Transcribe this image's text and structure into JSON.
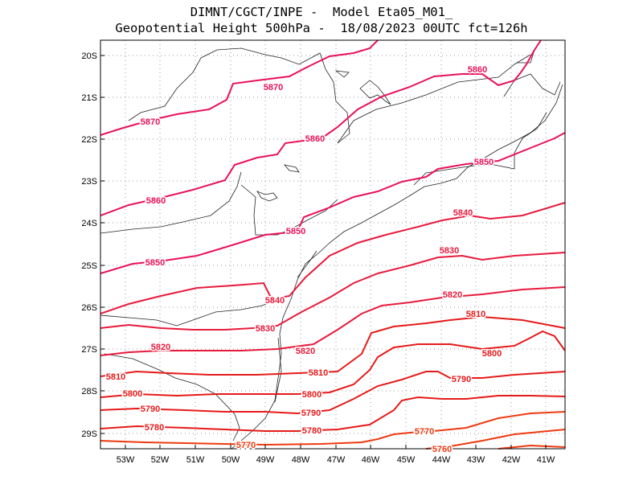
{
  "title": {
    "line1": "DIMNT/CGCT/INPE -  Model Eta05_M01_",
    "line2": "Geopotential Height 500hPa -  18/08/2023 00UTC fct=126h"
  },
  "axes": {
    "lat_labels": [
      "20S",
      "21S",
      "22S",
      "23S",
      "24S",
      "25S",
      "26S",
      "27S",
      "28S",
      "29S"
    ],
    "lon_labels": [
      "53W",
      "52W",
      "51W",
      "50W",
      "49W",
      "48W",
      "47W",
      "46W",
      "45W",
      "44W",
      "43W",
      "42W",
      "41W"
    ]
  },
  "contour_labels": [
    "5870",
    "5870",
    "5860",
    "5860",
    "5860",
    "5850",
    "5850",
    "5850",
    "5840",
    "5840",
    "5830",
    "5830",
    "5820",
    "5820",
    "5810",
    "5810",
    "5800",
    "5800",
    "5800",
    "5790",
    "5790",
    "5780",
    "5780",
    "5770",
    "5770",
    "5760",
    "5820",
    "5810",
    "5790"
  ],
  "colors": {
    "high": "#e8115a",
    "mid": "#e81a3c",
    "low": "#e61a1a",
    "lowest": "#ee3a10",
    "coast": "#222222",
    "grid": "#999999"
  }
}
